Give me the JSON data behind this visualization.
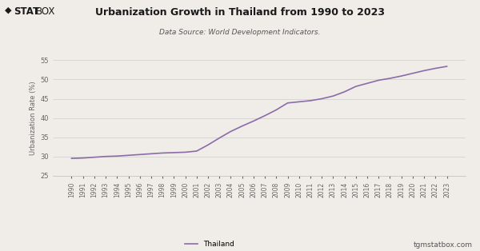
{
  "title": "Urbanization Growth in Thailand from 1990 to 2023",
  "subtitle": "Data Source: World Development Indicators.",
  "ylabel": "Urbanization Rate (%)",
  "line_color": "#8B6BA8",
  "background_color": "#f0ede8",
  "legend_label": "Thailand",
  "watermark": "tgmstatbox.com",
  "ylim": [
    25,
    55
  ],
  "yticks": [
    25,
    30,
    35,
    40,
    45,
    50,
    55
  ],
  "years": [
    1990,
    1991,
    1992,
    1993,
    1994,
    1995,
    1996,
    1997,
    1998,
    1999,
    2000,
    2001,
    2002,
    2003,
    2004,
    2005,
    2006,
    2007,
    2008,
    2009,
    2010,
    2011,
    2012,
    2013,
    2014,
    2015,
    2016,
    2017,
    2018,
    2019,
    2020,
    2021,
    2022,
    2023
  ],
  "values": [
    29.5,
    29.6,
    29.8,
    30.0,
    30.1,
    30.3,
    30.5,
    30.7,
    30.9,
    31.0,
    31.1,
    31.4,
    33.0,
    34.8,
    36.5,
    37.9,
    39.2,
    40.6,
    42.1,
    43.9,
    44.2,
    44.5,
    45.0,
    45.7,
    46.8,
    48.2,
    49.0,
    49.8,
    50.3,
    50.9,
    51.6,
    52.3,
    52.9,
    53.4
  ]
}
